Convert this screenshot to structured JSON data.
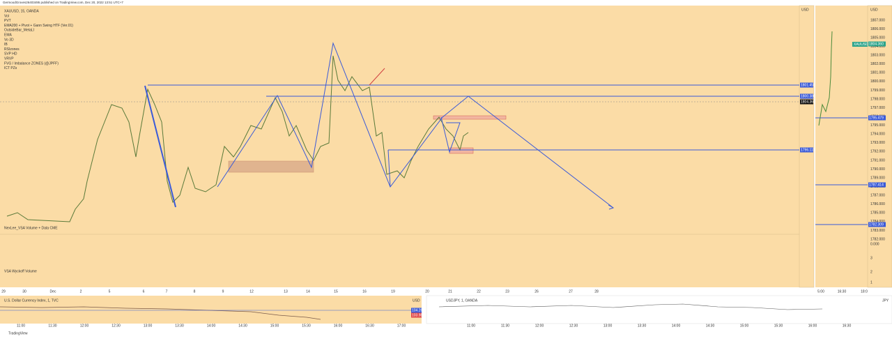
{
  "header": {
    "publisher": "GermoodGroves26403495 published on TradingView.com, Dec 20, 2022 13:51 UTC+7",
    "symbol": "XAUUSD, 15, OANDA"
  },
  "indicators": [
    "Vol",
    "PVT",
    "EMA200 + Pivot + Gann Swing HTF (Ver.01)",
    "OutsideBar_MetaLI",
    "EMA",
    "Vo 3D",
    "IB",
    "RSIzones",
    "SVP HD",
    "VRVP",
    "FVG / Imbalance ZONES (@JPFF)",
    "ICT PZs"
  ],
  "panes": {
    "volume": "NexLee_VSA Volume + Data CME",
    "wyckoff": "VSA Wyckoff Volume"
  },
  "main_axis": {
    "currency": "USD",
    "tags": [
      "1801.455",
      "1800.386",
      "1804.360",
      "1796.111"
    ]
  },
  "main_time": [
    "29",
    "30",
    "Dec",
    "2",
    "5",
    "6",
    "7",
    "8",
    "9",
    "12",
    "13",
    "14",
    "15",
    "16",
    "19",
    "20",
    "21",
    "22",
    "23",
    "26",
    "27",
    "28"
  ],
  "side_chart": {
    "currency": "USD",
    "ticks": [
      "1807.000",
      "1806.000",
      "1805.000",
      "1804.000",
      "1803.000",
      "1802.000",
      "1801.000",
      "1800.000",
      "1799.000",
      "1798.000",
      "1797.000",
      "1796.000",
      "1795.000",
      "1794.000",
      "1793.000",
      "1792.000",
      "1791.000",
      "1790.000",
      "1789.000",
      "1788.000",
      "1787.000",
      "1786.000",
      "1785.000",
      "1784.000",
      "1783.000",
      "1782.000"
    ],
    "symbol": "XAUUSD",
    "last": "1804.360",
    "tags": [
      "1795.479",
      "1787.414",
      "1782.309"
    ],
    "volume_ticks": [
      "0.000",
      "3",
      "2",
      "1"
    ],
    "time": [
      "5:00",
      "16:30",
      "18:0"
    ]
  },
  "dxy": {
    "title": "U.S. Dollar Currency Index, 1, TVC",
    "currency": "USD",
    "tags": [
      "104.266",
      "103.988"
    ],
    "time": [
      "11:00",
      "11:30",
      "12:00",
      "12:30",
      "13:00",
      "13:30",
      "14:00",
      "14:30",
      "15:00",
      "15:30",
      "16:00",
      "16:30",
      "17:00"
    ]
  },
  "usdjpy": {
    "title": "USDJPY, 1, OANDA",
    "currency": "JPY",
    "time": [
      "11:00",
      "11:30",
      "12:00",
      "12:30",
      "13:00",
      "13:30",
      "14:00",
      "14:30",
      "15:00",
      "15:30",
      "16:00",
      "16:30"
    ]
  },
  "footer": "TradingView"
}
